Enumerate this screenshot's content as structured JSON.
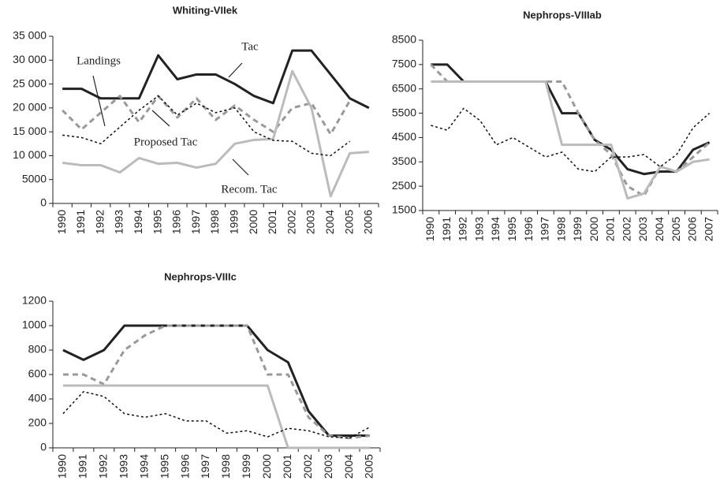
{
  "chart_data": [
    {
      "type": "line",
      "title": "Whiting-VIIek",
      "categories": [
        "1990",
        "1991",
        "1992",
        "1993",
        "1994",
        "1995",
        "1996",
        "1997",
        "1998",
        "1999",
        "2000",
        "2001",
        "2002",
        "2003",
        "2004",
        "2005",
        "2006"
      ],
      "ylim": [
        0,
        35000
      ],
      "yticks": [
        0,
        5000,
        {
          "value": 10000,
          "label": "10 000"
        },
        {
          "value": 15000,
          "label": "15 000"
        },
        {
          "value": 20000,
          "label": "20 000"
        },
        {
          "value": 25000,
          "label": "25 000"
        },
        {
          "value": 30000,
          "label": "30 000"
        },
        {
          "value": 35000,
          "label": "35 000"
        }
      ],
      "series": [
        {
          "name": "Tac",
          "color": "#222222",
          "values": [
            24000,
            24000,
            22000,
            22000,
            22000,
            31000,
            26000,
            27000,
            27000,
            25000,
            22500,
            21000,
            32000,
            32000,
            27000,
            22000,
            20000
          ]
        },
        {
          "name": "Proposed  Tac",
          "color": "#999999",
          "values": [
            19500,
            15500,
            19000,
            22500,
            17000,
            22500,
            18000,
            22000,
            17500,
            20500,
            17500,
            15000,
            20000,
            21000,
            14500,
            21500,
            null
          ]
        },
        {
          "name": "Recom. Tac",
          "color": "#bbbbbb",
          "values": [
            8500,
            8000,
            8000,
            6500,
            9500,
            8300,
            8500,
            7500,
            8300,
            12500,
            13300,
            13500,
            27700,
            20000,
            1500,
            10500,
            10800
          ]
        },
        {
          "name": "Landings",
          "color": "#111111",
          "values": [
            14300,
            13800,
            12500,
            16000,
            19500,
            22500,
            18500,
            21000,
            19000,
            20000,
            15000,
            13200,
            13000,
            10500,
            10000,
            13000,
            null
          ]
        }
      ]
    },
    {
      "type": "line",
      "title": "Nephrops-VIIIab",
      "categories": [
        "1990",
        "1991",
        "1992",
        "1993",
        "1994",
        "1995",
        "1996",
        "1997",
        "1998",
        "1999",
        "2000",
        "2001",
        "2002",
        "2003",
        "2004",
        "2005",
        "2006",
        "2007"
      ],
      "ylim": [
        1500,
        8500
      ],
      "yticks": [
        1500,
        2500,
        3500,
        4500,
        5500,
        6500,
        7500,
        8500
      ],
      "series": [
        {
          "color": "#222222",
          "values": [
            7500,
            7500,
            6800,
            6800,
            6800,
            6800,
            6800,
            6800,
            5500,
            5500,
            4400,
            4000,
            3200,
            3000,
            3100,
            3100,
            4000,
            4300
          ]
        },
        {
          "color": "#999999",
          "values": [
            7500,
            6800,
            6800,
            6800,
            6800,
            6800,
            6800,
            6800,
            6800,
            5500,
            4400,
            3800,
            2500,
            2100,
            3300,
            3100,
            3700,
            4300
          ]
        },
        {
          "color": "#bbbbbb",
          "values": [
            6800,
            6800,
            6800,
            6800,
            6800,
            6800,
            6800,
            6800,
            4200,
            4200,
            4200,
            4200,
            2000,
            2200,
            3300,
            3100,
            3500,
            3600
          ]
        },
        {
          "color": "#111111",
          "values": [
            5000,
            4800,
            5700,
            5200,
            4200,
            4500,
            4100,
            3700,
            3900,
            3200,
            3100,
            3700,
            3700,
            3800,
            3300,
            3800,
            4900,
            5500
          ]
        }
      ]
    },
    {
      "type": "line",
      "title": "Nephrops-VIIIc",
      "categories": [
        "1990",
        "1991",
        "1992",
        "1993",
        "1994",
        "1995",
        "1996",
        "1997",
        "1998",
        "1999",
        "2000",
        "2001",
        "2002",
        "2003",
        "2004",
        "2005"
      ],
      "ylim": [
        0,
        1200
      ],
      "yticks": [
        0,
        200,
        400,
        600,
        800,
        1000,
        1200
      ],
      "series": [
        {
          "color": "#222222",
          "values": [
            800,
            720,
            800,
            1000,
            1000,
            1000,
            1000,
            1000,
            1000,
            1000,
            800,
            700,
            300,
            100,
            100,
            100
          ]
        },
        {
          "color": "#999999",
          "values": [
            600,
            600,
            520,
            800,
            920,
            1000,
            1000,
            1000,
            1000,
            1000,
            600,
            600,
            250,
            100,
            80,
            100
          ]
        },
        {
          "color": "#bbbbbb",
          "values": [
            510,
            510,
            510,
            510,
            510,
            510,
            510,
            510,
            510,
            510,
            510,
            0,
            0,
            0,
            0,
            0
          ]
        },
        {
          "color": "#111111",
          "values": [
            280,
            460,
            420,
            280,
            250,
            280,
            220,
            220,
            120,
            140,
            90,
            160,
            140,
            90,
            80,
            170
          ]
        }
      ]
    }
  ]
}
